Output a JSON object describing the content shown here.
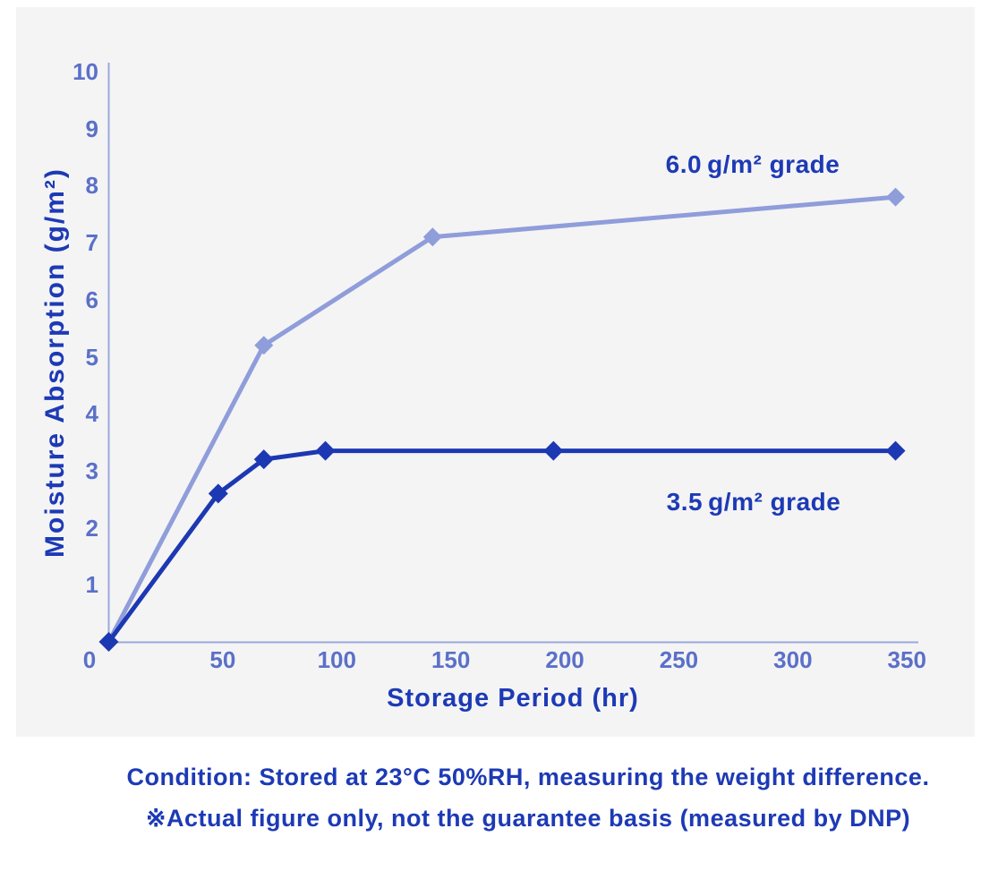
{
  "colors": {
    "background": "#ffffff",
    "panel": "#f4f4f5",
    "axis_line": "#9ba8da",
    "tick_label": "#5b70c8",
    "heading_text": "#1d3ab5",
    "series_light": "#8f9dda",
    "series_dark": "#1c38b2"
  },
  "chart_data": {
    "type": "line",
    "title": "",
    "xlabel": "Storage Period (hr)",
    "ylabel": "Moisture Absorption (g/m²)",
    "xlim": [
      0,
      355
    ],
    "ylim": [
      0,
      10
    ],
    "x_ticks": [
      0,
      50,
      100,
      150,
      200,
      250,
      300,
      350
    ],
    "y_ticks": [
      1,
      2,
      3,
      4,
      5,
      6,
      7,
      8,
      9,
      10
    ],
    "grid": false,
    "legend_position": "inline-labels",
    "marker": "diamond",
    "series": [
      {
        "name": "6.0 g/m² grade",
        "label": "6.0 g/m² grade",
        "color": "#8f9dda",
        "points": [
          [
            0,
            0
          ],
          [
            68,
            5.2
          ],
          [
            142,
            7.1
          ],
          [
            345,
            7.8
          ]
        ]
      },
      {
        "name": "3.5 g/m² grade",
        "label": "3.5 g/m² grade",
        "color": "#1c38b2",
        "points": [
          [
            0,
            0
          ],
          [
            48,
            2.6
          ],
          [
            68,
            3.2
          ],
          [
            95,
            3.35
          ],
          [
            195,
            3.35
          ],
          [
            345,
            3.35
          ]
        ]
      }
    ]
  },
  "footnote": {
    "line1": "Condition: Stored at 23°C 50%RH, measuring the weight difference.",
    "line2": "※Actual figure only, not the guarantee basis (measured by DNP)"
  }
}
